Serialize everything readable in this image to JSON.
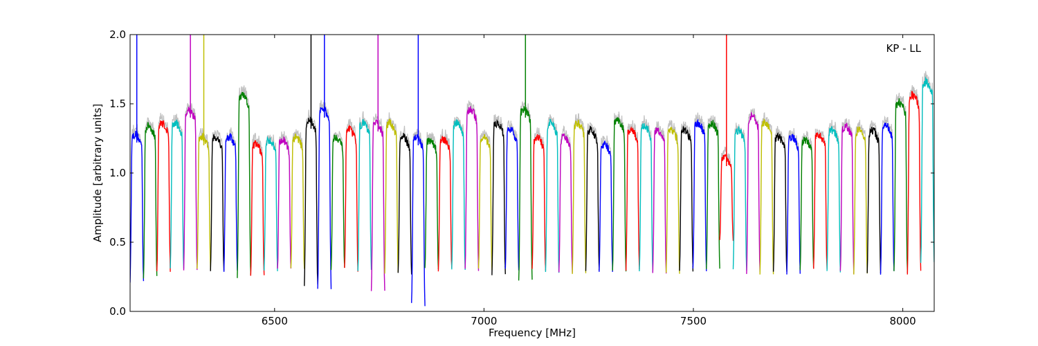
{
  "chart_data": {
    "type": "line",
    "title": "",
    "annotation": "KP - LL",
    "xlabel": "Frequency [MHz]",
    "ylabel": "Amplitude [arbitrary units]",
    "xlim": [
      6155,
      8075
    ],
    "ylim": [
      0.0,
      2.0
    ],
    "x_ticks": [
      6500,
      7000,
      7500,
      8000
    ],
    "x_tick_labels": [
      "6500",
      "7000",
      "7500",
      "8000"
    ],
    "y_ticks": [
      0.0,
      0.5,
      1.0,
      1.5,
      2.0
    ],
    "y_tick_labels": [
      "0.0",
      "0.5",
      "1.0",
      "1.5",
      "2.0"
    ],
    "grid": false,
    "legend": "none",
    "background_series": {
      "color": "#c0c0c0",
      "description": "unflagged spectrum underlay"
    },
    "channel_width_mhz": 32,
    "first_channel_start_mhz": 6155,
    "color_cycle": [
      "#0000ff",
      "#008000",
      "#ff0000",
      "#00bfbf",
      "#bf00bf",
      "#bfbf00",
      "#000000"
    ],
    "channels": [
      {
        "start": 6155,
        "level": 1.22,
        "edge_low": 0.22,
        "spike": 2.0
      },
      {
        "start": 6187,
        "level": 1.28,
        "edge_low": 0.25
      },
      {
        "start": 6219,
        "level": 1.3,
        "edge_low": 0.3
      },
      {
        "start": 6251,
        "level": 1.3,
        "edge_low": 0.3
      },
      {
        "start": 6283,
        "level": 1.4,
        "edge_low": 0.3,
        "spike": 2.0
      },
      {
        "start": 6315,
        "level": 1.2,
        "edge_low": 0.3,
        "spike": 2.0
      },
      {
        "start": 6347,
        "level": 1.2,
        "edge_low": 0.3
      },
      {
        "start": 6379,
        "level": 1.2,
        "edge_low": 0.3
      },
      {
        "start": 6411,
        "level": 1.5,
        "edge_low": 0.25
      },
      {
        "start": 6443,
        "level": 1.15,
        "edge_low": 0.25
      },
      {
        "start": 6475,
        "level": 1.18,
        "edge_low": 0.3
      },
      {
        "start": 6507,
        "level": 1.18,
        "edge_low": 0.3
      },
      {
        "start": 6539,
        "level": 1.2,
        "edge_low": 0.3
      },
      {
        "start": 6571,
        "level": 1.32,
        "edge_low": 0.18,
        "spike": 2.0
      },
      {
        "start": 6603,
        "level": 1.4,
        "edge_low": 0.17,
        "spike": 2.0
      },
      {
        "start": 6635,
        "level": 1.2,
        "edge_low": 0.3
      },
      {
        "start": 6667,
        "level": 1.25,
        "edge_low": 0.3
      },
      {
        "start": 6699,
        "level": 1.3,
        "edge_low": 0.3
      },
      {
        "start": 6731,
        "level": 1.3,
        "edge_low": 0.15,
        "spike": 2.0
      },
      {
        "start": 6763,
        "level": 1.3,
        "edge_low": 0.28
      },
      {
        "start": 6795,
        "level": 1.2,
        "edge_low": 0.28
      },
      {
        "start": 6827,
        "level": 1.2,
        "edge_low": 0.05,
        "spike": 2.0
      },
      {
        "start": 6859,
        "level": 1.18,
        "edge_low": 0.3
      },
      {
        "start": 6891,
        "level": 1.18,
        "edge_low": 0.3
      },
      {
        "start": 6923,
        "level": 1.3,
        "edge_low": 0.3
      },
      {
        "start": 6955,
        "level": 1.4,
        "edge_low": 0.3
      },
      {
        "start": 6987,
        "level": 1.2,
        "edge_low": 0.3
      },
      {
        "start": 7019,
        "level": 1.3,
        "edge_low": 0.26
      },
      {
        "start": 7051,
        "level": 1.25,
        "edge_low": 0.3
      },
      {
        "start": 7083,
        "level": 1.4,
        "edge_low": 0.22,
        "spike": 2.0
      },
      {
        "start": 7115,
        "level": 1.2,
        "edge_low": 0.3
      },
      {
        "start": 7147,
        "level": 1.3,
        "edge_low": 0.28
      },
      {
        "start": 7179,
        "level": 1.2,
        "edge_low": 0.28
      },
      {
        "start": 7211,
        "level": 1.3,
        "edge_low": 0.28
      },
      {
        "start": 7243,
        "level": 1.25,
        "edge_low": 0.3
      },
      {
        "start": 7275,
        "level": 1.15,
        "edge_low": 0.3
      },
      {
        "start": 7307,
        "level": 1.32,
        "edge_low": 0.28
      },
      {
        "start": 7339,
        "level": 1.25,
        "edge_low": 0.3
      },
      {
        "start": 7371,
        "level": 1.28,
        "edge_low": 0.28
      },
      {
        "start": 7403,
        "level": 1.25,
        "edge_low": 0.28
      },
      {
        "start": 7435,
        "level": 1.25,
        "edge_low": 0.28
      },
      {
        "start": 7467,
        "level": 1.25,
        "edge_low": 0.3
      },
      {
        "start": 7499,
        "level": 1.3,
        "edge_low": 0.3
      },
      {
        "start": 7531,
        "level": 1.3,
        "edge_low": 0.3
      },
      {
        "start": 7563,
        "level": 1.05,
        "edge_low": 0.52,
        "spike": 2.0
      },
      {
        "start": 7595,
        "level": 1.25,
        "edge_low": 0.3
      },
      {
        "start": 7627,
        "level": 1.35,
        "edge_low": 0.28
      },
      {
        "start": 7659,
        "level": 1.3,
        "edge_low": 0.28
      },
      {
        "start": 7691,
        "level": 1.2,
        "edge_low": 0.28
      },
      {
        "start": 7723,
        "level": 1.2,
        "edge_low": 0.28
      },
      {
        "start": 7755,
        "level": 1.18,
        "edge_low": 0.3
      },
      {
        "start": 7787,
        "level": 1.22,
        "edge_low": 0.3
      },
      {
        "start": 7819,
        "level": 1.25,
        "edge_low": 0.28
      },
      {
        "start": 7851,
        "level": 1.28,
        "edge_low": 0.28
      },
      {
        "start": 7883,
        "level": 1.25,
        "edge_low": 0.28
      },
      {
        "start": 7915,
        "level": 1.25,
        "edge_low": 0.28
      },
      {
        "start": 7947,
        "level": 1.28,
        "edge_low": 0.28
      },
      {
        "start": 7979,
        "level": 1.45,
        "edge_low": 0.28
      },
      {
        "start": 8011,
        "level": 1.5,
        "edge_low": 0.28
      },
      {
        "start": 8043,
        "level": 1.6,
        "edge_low": 0.35
      }
    ]
  }
}
